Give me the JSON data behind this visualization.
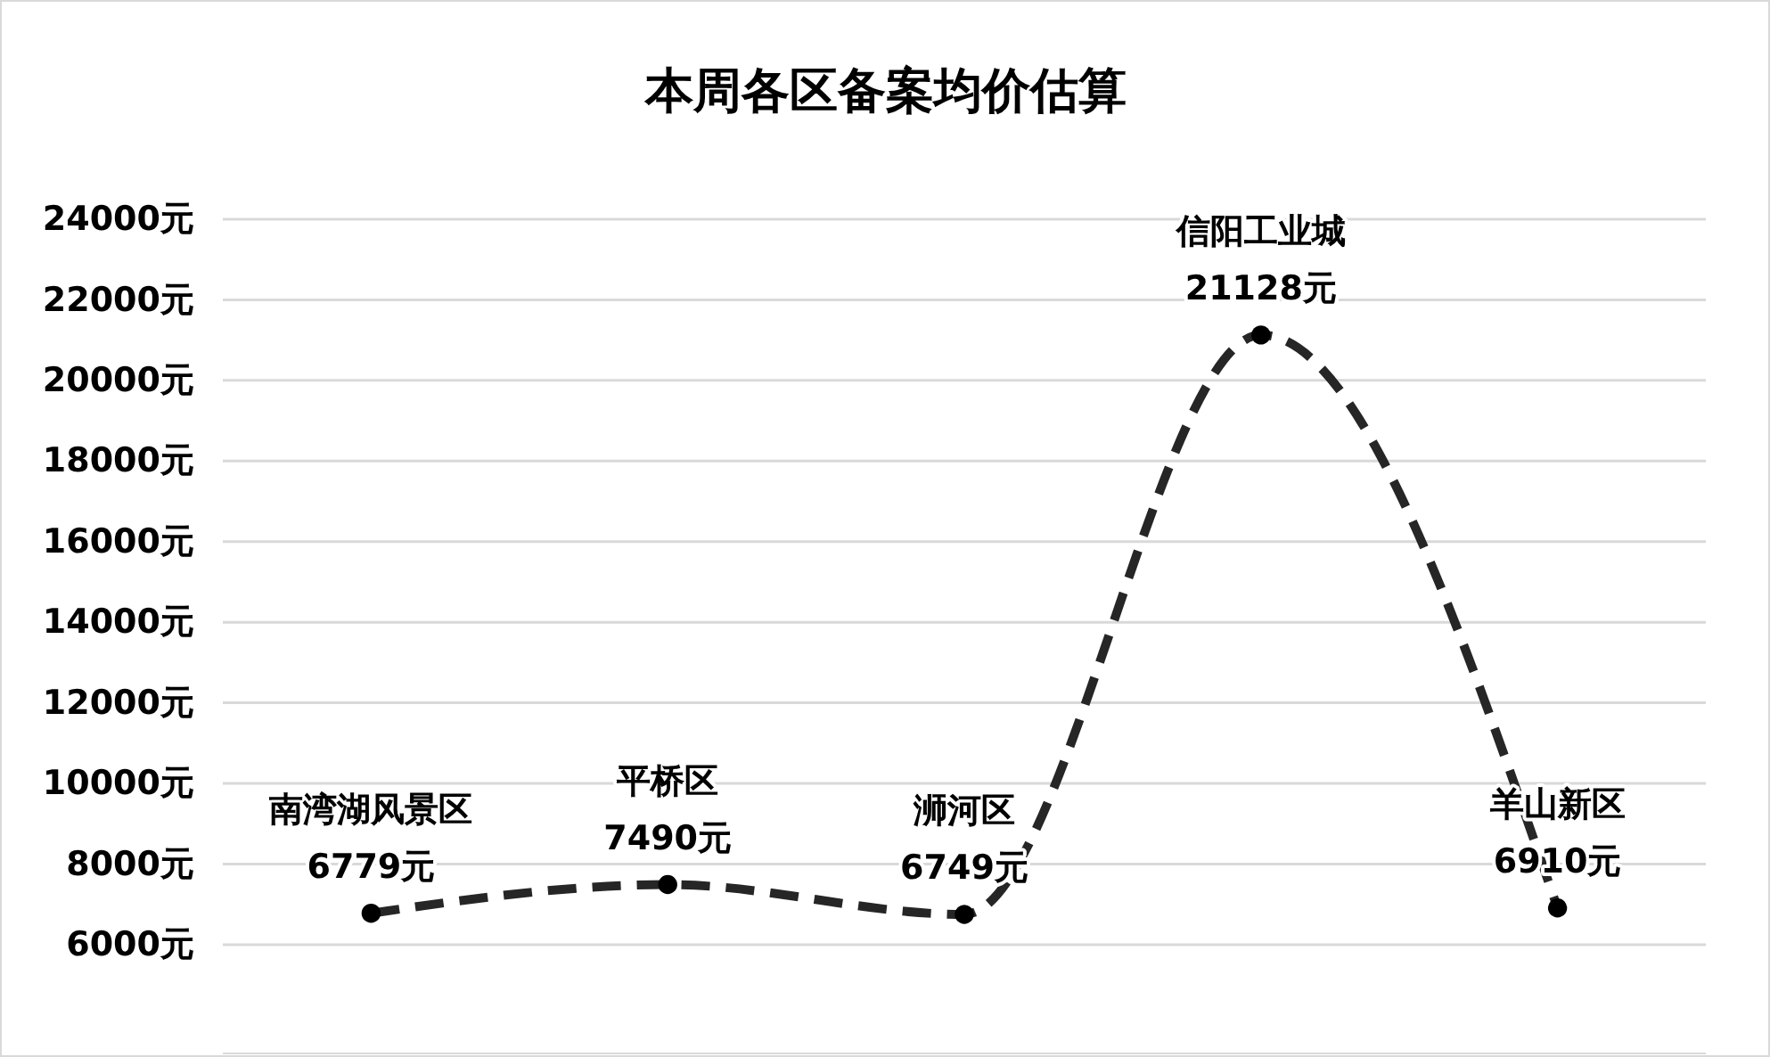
{
  "chart_data": {
    "type": "line",
    "title": "本周各区备案均价估算",
    "categories": [
      "南湾湖风景区",
      "平桥区",
      "浉河区",
      "信阳工业城",
      "羊山新区"
    ],
    "series": [
      {
        "color": "#262626",
        "values": [
          6779,
          7490,
          6749,
          21128,
          6910
        ],
        "value_labels": [
          "6779元",
          "7490元",
          "6749元",
          "21128元",
          "6910元"
        ]
      }
    ],
    "ylim": [
      3300,
      24000
    ],
    "yticks": [
      {
        "value": 6000,
        "label": "6000元"
      },
      {
        "value": 8000,
        "label": "8000元"
      },
      {
        "value": 10000,
        "label": "10000元"
      },
      {
        "value": 12000,
        "label": "12000元"
      },
      {
        "value": 14000,
        "label": "14000元"
      },
      {
        "value": 16000,
        "label": "16000元"
      },
      {
        "value": 18000,
        "label": "18000元"
      },
      {
        "value": 20000,
        "label": "20000元"
      },
      {
        "value": 22000,
        "label": "22000元"
      },
      {
        "value": 24000,
        "label": "24000元"
      }
    ],
    "grid": "y",
    "marker": "circle",
    "line_style": "dashed",
    "tick_labels": "y"
  }
}
